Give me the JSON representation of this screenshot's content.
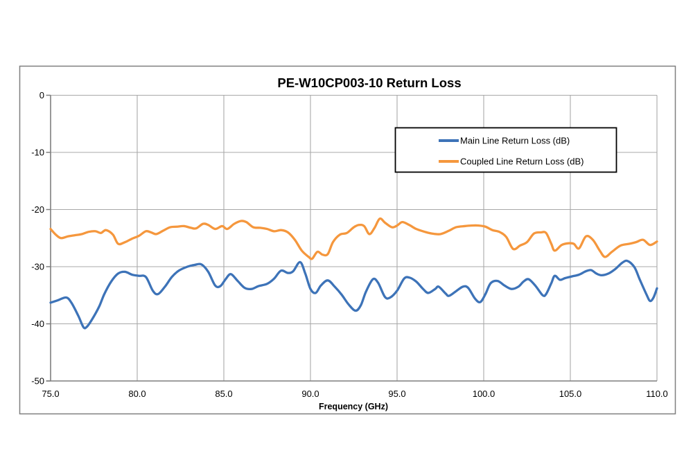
{
  "title": "PE-W10CP003-10 Return Loss",
  "colors": {
    "main_series": "#3D73B8",
    "coupled_series": "#F5973D",
    "gridline": "#A8A8A8",
    "axis": "#7F7F7F",
    "chart_border": "#7F7F7F",
    "legend_border": "#000000",
    "background": "#FFFFFF"
  },
  "chart_data": {
    "type": "line",
    "title": "PE-W10CP003-10 Return Loss",
    "xlabel": "Frequency (GHz)",
    "ylabel": "",
    "xlim": [
      75,
      110
    ],
    "ylim": [
      -50,
      0
    ],
    "grid": true,
    "legend_position": "inside-upper-right-boxed",
    "x_ticks": [
      {
        "value": 75,
        "label": "75.0"
      },
      {
        "value": 80,
        "label": "80.0"
      },
      {
        "value": 85,
        "label": "85.0"
      },
      {
        "value": 90,
        "label": "90.0"
      },
      {
        "value": 95,
        "label": "95.0"
      },
      {
        "value": 100,
        "label": "100.0"
      },
      {
        "value": 105,
        "label": "105.0"
      },
      {
        "value": 110,
        "label": "110.0"
      }
    ],
    "y_ticks": [
      {
        "value": 0,
        "label": "0"
      },
      {
        "value": -10,
        "label": "-10"
      },
      {
        "value": -20,
        "label": "-20"
      },
      {
        "value": -30,
        "label": "-30"
      },
      {
        "value": -40,
        "label": "-40"
      },
      {
        "value": -50,
        "label": "-50"
      }
    ],
    "series": [
      {
        "name": "Main Line Return Loss (dB)",
        "color": "#3D73B8",
        "x": [
          75.0,
          75.4,
          75.9,
          76.2,
          76.6,
          76.9,
          77.1,
          77.4,
          77.8,
          78.1,
          78.5,
          78.9,
          79.3,
          79.7,
          80.1,
          80.5,
          80.9,
          81.2,
          81.6,
          82.0,
          82.4,
          82.9,
          83.3,
          83.7,
          84.1,
          84.5,
          84.8,
          85.1,
          85.4,
          85.8,
          86.2,
          86.6,
          87.0,
          87.5,
          87.9,
          88.3,
          88.7,
          89.0,
          89.4,
          89.7,
          90.0,
          90.3,
          90.6,
          91.0,
          91.4,
          91.8,
          92.2,
          92.6,
          92.9,
          93.2,
          93.6,
          93.9,
          94.3,
          94.6,
          95.0,
          95.4,
          95.7,
          96.1,
          96.5,
          96.8,
          97.2,
          97.4,
          97.8,
          98.0,
          98.4,
          98.8,
          99.1,
          99.5,
          99.8,
          100.1,
          100.4,
          100.8,
          101.2,
          101.6,
          102.0,
          102.3,
          102.6,
          103.0,
          103.4,
          103.6,
          103.9,
          104.1,
          104.4,
          104.7,
          105.1,
          105.5,
          105.9,
          106.2,
          106.5,
          106.8,
          107.2,
          107.6,
          108.0,
          108.3,
          108.7,
          109.0,
          109.4,
          109.6,
          109.8,
          110.0
        ],
        "y": [
          -36.3,
          -35.9,
          -35.4,
          -36.3,
          -38.6,
          -40.6,
          -40.5,
          -39.2,
          -37.0,
          -34.8,
          -32.6,
          -31.2,
          -30.9,
          -31.4,
          -31.6,
          -31.8,
          -34.2,
          -34.8,
          -33.5,
          -31.8,
          -30.7,
          -30.0,
          -29.7,
          -29.6,
          -30.9,
          -33.3,
          -33.4,
          -32.2,
          -31.3,
          -32.5,
          -33.7,
          -33.9,
          -33.4,
          -33.0,
          -32.1,
          -30.7,
          -31.1,
          -30.8,
          -29.2,
          -31.2,
          -33.9,
          -34.6,
          -33.3,
          -32.4,
          -33.5,
          -34.9,
          -36.6,
          -37.7,
          -36.8,
          -34.4,
          -32.2,
          -32.8,
          -35.3,
          -35.4,
          -34.2,
          -32.1,
          -31.9,
          -32.6,
          -33.9,
          -34.6,
          -33.9,
          -33.5,
          -34.7,
          -35.1,
          -34.3,
          -33.5,
          -33.7,
          -35.6,
          -36.2,
          -34.8,
          -32.9,
          -32.5,
          -33.3,
          -33.9,
          -33.5,
          -32.6,
          -32.2,
          -33.4,
          -35.0,
          -34.8,
          -32.9,
          -31.6,
          -32.3,
          -32.0,
          -31.7,
          -31.4,
          -30.8,
          -30.6,
          -31.2,
          -31.5,
          -31.2,
          -30.4,
          -29.3,
          -29.0,
          -30.1,
          -32.2,
          -34.9,
          -36.0,
          -35.4,
          -33.8
        ]
      },
      {
        "name": "Coupled Line Return Loss (dB)",
        "color": "#F5973D",
        "x": [
          75.0,
          75.3,
          75.6,
          76.0,
          76.4,
          76.8,
          77.2,
          77.6,
          77.9,
          78.2,
          78.6,
          78.9,
          79.3,
          79.7,
          80.1,
          80.5,
          80.8,
          81.1,
          81.5,
          81.9,
          82.3,
          82.7,
          83.1,
          83.4,
          83.8,
          84.1,
          84.5,
          84.9,
          85.2,
          85.6,
          86.0,
          86.3,
          86.7,
          87.1,
          87.5,
          87.9,
          88.3,
          88.7,
          89.1,
          89.5,
          89.9,
          90.1,
          90.4,
          90.7,
          91.0,
          91.3,
          91.7,
          92.1,
          92.5,
          92.8,
          93.1,
          93.4,
          93.7,
          94.0,
          94.3,
          94.7,
          95.0,
          95.3,
          95.7,
          96.1,
          96.6,
          97.0,
          97.5,
          98.0,
          98.4,
          98.9,
          99.3,
          99.7,
          100.1,
          100.5,
          100.9,
          101.3,
          101.7,
          102.1,
          102.5,
          102.9,
          103.3,
          103.6,
          103.9,
          104.1,
          104.5,
          104.9,
          105.2,
          105.5,
          105.9,
          106.3,
          106.7,
          107.0,
          107.4,
          107.9,
          108.4,
          108.8,
          109.2,
          109.6,
          110.0
        ],
        "y": [
          -23.4,
          -24.4,
          -25.0,
          -24.7,
          -24.5,
          -24.3,
          -23.9,
          -23.8,
          -24.1,
          -23.6,
          -24.4,
          -26.0,
          -25.7,
          -25.1,
          -24.6,
          -23.8,
          -24.0,
          -24.3,
          -23.7,
          -23.1,
          -23.0,
          -22.9,
          -23.2,
          -23.3,
          -22.5,
          -22.7,
          -23.4,
          -22.9,
          -23.4,
          -22.5,
          -22.0,
          -22.2,
          -23.1,
          -23.2,
          -23.4,
          -23.8,
          -23.6,
          -24.0,
          -25.3,
          -27.2,
          -28.3,
          -28.6,
          -27.4,
          -27.9,
          -27.8,
          -25.7,
          -24.4,
          -24.1,
          -23.1,
          -22.7,
          -22.9,
          -24.3,
          -23.2,
          -21.6,
          -22.3,
          -23.1,
          -22.8,
          -22.2,
          -22.7,
          -23.4,
          -23.9,
          -24.2,
          -24.3,
          -23.7,
          -23.1,
          -22.9,
          -22.8,
          -22.8,
          -23.0,
          -23.6,
          -23.9,
          -24.8,
          -26.9,
          -26.3,
          -25.7,
          -24.2,
          -24.0,
          -24.1,
          -26.0,
          -27.2,
          -26.2,
          -25.9,
          -26.0,
          -26.8,
          -24.7,
          -25.3,
          -27.2,
          -28.3,
          -27.4,
          -26.3,
          -26.0,
          -25.7,
          -25.3,
          -26.2,
          -25.6
        ]
      }
    ]
  }
}
